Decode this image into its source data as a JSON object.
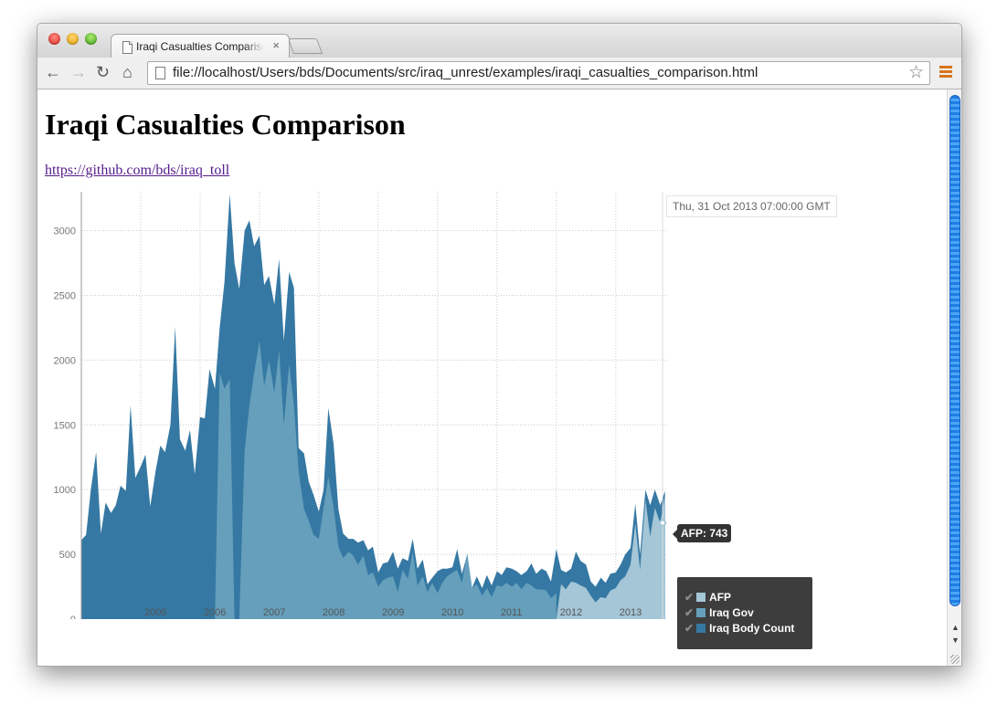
{
  "browser": {
    "tab_title": "Iraqi Casualties Comparison",
    "tab_close": "×",
    "url": "file://localhost/Users/bds/Documents/src/iraq_unrest/examples/iraqi_casualties_comparison.html"
  },
  "page": {
    "title": "Iraqi Casualties Comparison",
    "link_text": "https://github.com/bds/iraq_toll"
  },
  "hover": {
    "time_label": "Thu, 31 Oct 2013 07:00:00 GMT",
    "point_label": "AFP: 743"
  },
  "legend": [
    {
      "label": "AFP",
      "color": "#a4c6d7"
    },
    {
      "label": "Iraq Gov",
      "color": "#659fbb"
    },
    {
      "label": "Iraq Body Count",
      "color": "#3578a3"
    }
  ],
  "chart_data": {
    "type": "area",
    "stacking": "none",
    "ylim": [
      0,
      3300
    ],
    "yticks": [
      0,
      500,
      1000,
      1500,
      2000,
      2500,
      3000
    ],
    "xlim": [
      2004.0,
      2013.85
    ],
    "xticks": [
      "2005",
      "2006",
      "2007",
      "2008",
      "2009",
      "2010",
      "2011",
      "2012",
      "2013"
    ],
    "grid": true,
    "series": [
      {
        "name": "Iraq Body Count",
        "color": "#3578a3",
        "points": [
          [
            2004.0,
            610
          ],
          [
            2004.08,
            650
          ],
          [
            2004.16,
            1000
          ],
          [
            2004.25,
            1290
          ],
          [
            2004.33,
            660
          ],
          [
            2004.41,
            900
          ],
          [
            2004.5,
            820
          ],
          [
            2004.58,
            880
          ],
          [
            2004.66,
            1030
          ],
          [
            2004.75,
            990
          ],
          [
            2004.83,
            1650
          ],
          [
            2004.91,
            1090
          ],
          [
            2005.0,
            1180
          ],
          [
            2005.08,
            1270
          ],
          [
            2005.16,
            870
          ],
          [
            2005.25,
            1140
          ],
          [
            2005.33,
            1340
          ],
          [
            2005.41,
            1290
          ],
          [
            2005.5,
            1500
          ],
          [
            2005.58,
            2260
          ],
          [
            2005.66,
            1390
          ],
          [
            2005.75,
            1300
          ],
          [
            2005.83,
            1460
          ],
          [
            2005.91,
            1120
          ],
          [
            2006.0,
            1560
          ],
          [
            2006.08,
            1550
          ],
          [
            2006.16,
            1930
          ],
          [
            2006.25,
            1780
          ],
          [
            2006.33,
            2250
          ],
          [
            2006.41,
            2600
          ],
          [
            2006.5,
            3280
          ],
          [
            2006.58,
            2750
          ],
          [
            2006.66,
            2550
          ],
          [
            2006.75,
            3000
          ],
          [
            2006.83,
            3080
          ],
          [
            2006.91,
            2880
          ],
          [
            2007.0,
            2960
          ],
          [
            2007.08,
            2580
          ],
          [
            2007.16,
            2650
          ],
          [
            2007.25,
            2430
          ],
          [
            2007.33,
            2780
          ],
          [
            2007.41,
            2150
          ],
          [
            2007.5,
            2680
          ],
          [
            2007.58,
            2560
          ],
          [
            2007.66,
            1320
          ],
          [
            2007.75,
            1280
          ],
          [
            2007.83,
            1060
          ],
          [
            2007.91,
            960
          ],
          [
            2008.0,
            830
          ],
          [
            2008.08,
            1000
          ],
          [
            2008.16,
            1630
          ],
          [
            2008.25,
            1350
          ],
          [
            2008.33,
            850
          ],
          [
            2008.41,
            660
          ],
          [
            2008.5,
            620
          ],
          [
            2008.58,
            620
          ],
          [
            2008.66,
            590
          ],
          [
            2008.75,
            610
          ],
          [
            2008.83,
            530
          ],
          [
            2008.91,
            560
          ],
          [
            2009.0,
            360
          ],
          [
            2009.08,
            430
          ],
          [
            2009.16,
            440
          ],
          [
            2009.25,
            520
          ],
          [
            2009.33,
            390
          ],
          [
            2009.41,
            470
          ],
          [
            2009.5,
            450
          ],
          [
            2009.58,
            620
          ],
          [
            2009.66,
            390
          ],
          [
            2009.75,
            460
          ],
          [
            2009.83,
            270
          ],
          [
            2009.91,
            320
          ],
          [
            2010.0,
            370
          ],
          [
            2010.08,
            390
          ],
          [
            2010.16,
            390
          ],
          [
            2010.25,
            400
          ],
          [
            2010.33,
            540
          ],
          [
            2010.41,
            350
          ],
          [
            2010.5,
            500
          ],
          [
            2010.58,
            240
          ],
          [
            2010.66,
            330
          ],
          [
            2010.75,
            240
          ],
          [
            2010.83,
            340
          ],
          [
            2010.91,
            260
          ],
          [
            2011.0,
            370
          ],
          [
            2011.08,
            340
          ],
          [
            2011.16,
            400
          ],
          [
            2011.25,
            390
          ],
          [
            2011.33,
            370
          ],
          [
            2011.41,
            340
          ],
          [
            2011.5,
            370
          ],
          [
            2011.58,
            430
          ],
          [
            2011.66,
            350
          ],
          [
            2011.75,
            390
          ],
          [
            2011.83,
            370
          ],
          [
            2011.91,
            290
          ],
          [
            2012.0,
            540
          ],
          [
            2012.08,
            380
          ],
          [
            2012.16,
            360
          ],
          [
            2012.25,
            390
          ],
          [
            2012.33,
            520
          ],
          [
            2012.41,
            450
          ],
          [
            2012.5,
            420
          ],
          [
            2012.58,
            290
          ],
          [
            2012.66,
            250
          ],
          [
            2012.75,
            320
          ],
          [
            2012.83,
            280
          ],
          [
            2012.91,
            350
          ],
          [
            2013.0,
            360
          ],
          [
            2013.08,
            420
          ],
          [
            2013.16,
            500
          ],
          [
            2013.25,
            550
          ],
          [
            2013.33,
            890
          ],
          [
            2013.41,
            500
          ],
          [
            2013.5,
            1000
          ],
          [
            2013.58,
            880
          ],
          [
            2013.66,
            1000
          ],
          [
            2013.75,
            880
          ],
          [
            2013.83,
            990
          ]
        ]
      },
      {
        "name": "Iraq Gov",
        "color": "#659fbb",
        "points": [
          [
            2006.25,
            0
          ],
          [
            2006.33,
            1900
          ],
          [
            2006.41,
            1780
          ],
          [
            2006.5,
            1850
          ],
          [
            2006.58,
            0
          ],
          [
            2006.66,
            0
          ],
          [
            2006.75,
            1300
          ],
          [
            2006.83,
            1650
          ],
          [
            2006.91,
            1900
          ],
          [
            2007.0,
            2150
          ],
          [
            2007.08,
            1800
          ],
          [
            2007.16,
            2000
          ],
          [
            2007.25,
            1750
          ],
          [
            2007.33,
            2080
          ],
          [
            2007.41,
            1500
          ],
          [
            2007.5,
            1970
          ],
          [
            2007.58,
            1650
          ],
          [
            2007.66,
            1140
          ],
          [
            2007.75,
            850
          ],
          [
            2007.83,
            760
          ],
          [
            2007.91,
            650
          ],
          [
            2008.0,
            620
          ],
          [
            2008.08,
            860
          ],
          [
            2008.16,
            1100
          ],
          [
            2008.25,
            860
          ],
          [
            2008.33,
            560
          ],
          [
            2008.41,
            470
          ],
          [
            2008.5,
            520
          ],
          [
            2008.58,
            490
          ],
          [
            2008.66,
            420
          ],
          [
            2008.75,
            490
          ],
          [
            2008.83,
            340
          ],
          [
            2008.91,
            360
          ],
          [
            2009.0,
            250
          ],
          [
            2009.08,
            300
          ],
          [
            2009.16,
            320
          ],
          [
            2009.25,
            330
          ],
          [
            2009.33,
            210
          ],
          [
            2009.41,
            380
          ],
          [
            2009.5,
            310
          ],
          [
            2009.58,
            520
          ],
          [
            2009.66,
            260
          ],
          [
            2009.75,
            330
          ],
          [
            2009.83,
            210
          ],
          [
            2009.91,
            280
          ],
          [
            2010.0,
            200
          ],
          [
            2010.08,
            280
          ],
          [
            2010.16,
            330
          ],
          [
            2010.25,
            360
          ],
          [
            2010.33,
            380
          ],
          [
            2010.41,
            280
          ],
          [
            2010.5,
            510
          ],
          [
            2010.58,
            240
          ],
          [
            2010.66,
            270
          ],
          [
            2010.75,
            180
          ],
          [
            2010.83,
            240
          ],
          [
            2010.91,
            170
          ],
          [
            2011.0,
            260
          ],
          [
            2011.08,
            250
          ],
          [
            2011.16,
            280
          ],
          [
            2011.25,
            250
          ],
          [
            2011.33,
            280
          ],
          [
            2011.41,
            230
          ],
          [
            2011.5,
            280
          ],
          [
            2011.58,
            260
          ],
          [
            2011.66,
            230
          ],
          [
            2011.75,
            230
          ],
          [
            2011.83,
            220
          ],
          [
            2011.91,
            160
          ],
          [
            2012.0,
            200
          ]
        ]
      },
      {
        "name": "AFP",
        "color": "#a4c6d7",
        "points": [
          [
            2012.0,
            0
          ],
          [
            2012.08,
            270
          ],
          [
            2012.16,
            230
          ],
          [
            2012.25,
            290
          ],
          [
            2012.33,
            280
          ],
          [
            2012.41,
            260
          ],
          [
            2012.5,
            240
          ],
          [
            2012.58,
            180
          ],
          [
            2012.66,
            130
          ],
          [
            2012.75,
            170
          ],
          [
            2012.83,
            160
          ],
          [
            2012.91,
            220
          ],
          [
            2013.0,
            240
          ],
          [
            2013.08,
            300
          ],
          [
            2013.16,
            330
          ],
          [
            2013.25,
            420
          ],
          [
            2013.33,
            740
          ],
          [
            2013.41,
            380
          ],
          [
            2013.5,
            920
          ],
          [
            2013.58,
            640
          ],
          [
            2013.66,
            860
          ],
          [
            2013.75,
            740
          ],
          [
            2013.83,
            960
          ]
        ]
      }
    ]
  }
}
